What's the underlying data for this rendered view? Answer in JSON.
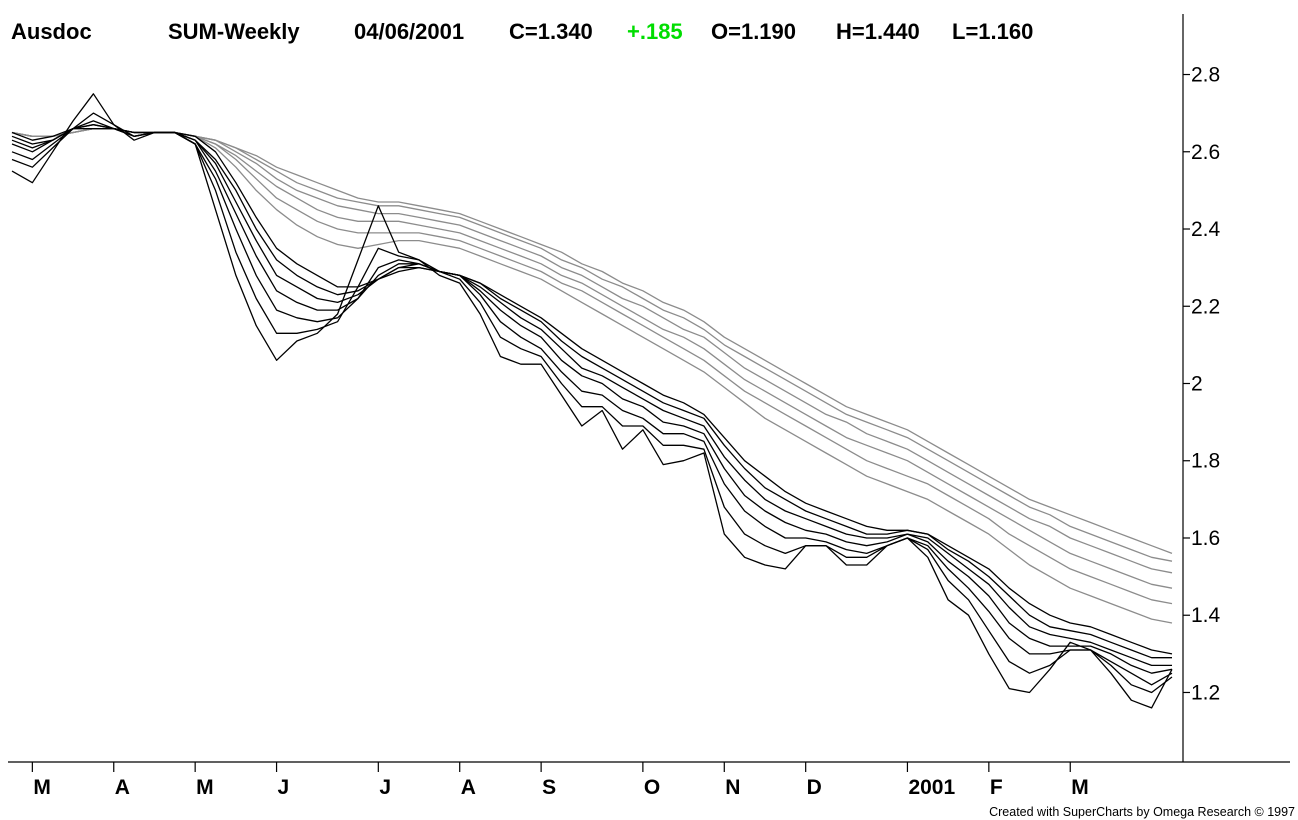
{
  "header": {
    "symbol": "Ausdoc",
    "ticker_period": "SUM-Weekly",
    "date": "04/06/2001",
    "close": "C=1.340",
    "change": "+.185",
    "open": "O=1.190",
    "high": "H=1.440",
    "low": "L=1.160"
  },
  "footer": {
    "credit": "Created with SuperCharts by Omega Research © 1997"
  },
  "colors": {
    "change_color": "#00dd00",
    "short_group": "#000000",
    "long_group": "#8c8c8c"
  },
  "chart_data": {
    "type": "line",
    "description_free": true,
    "x_unit": "weeks",
    "x_labels": [
      "M",
      "A",
      "M",
      "J",
      "J",
      "A",
      "S",
      "O",
      "N",
      "D",
      "2001",
      "F",
      "M"
    ],
    "x_label_weeks": [
      1,
      5,
      9,
      13,
      18,
      22,
      26,
      31,
      35,
      39,
      44,
      48,
      52
    ],
    "ylim": [
      1.02,
      2.98
    ],
    "y_ticks": [
      1.2,
      1.4,
      1.6,
      1.8,
      2,
      2.2,
      2.4,
      2.6,
      2.8
    ],
    "y_tick_labels": [
      "1.2",
      "1.4",
      "1.6",
      "1.8",
      "2",
      "2.2",
      "2.4",
      "2.6",
      "2.8"
    ],
    "x_points": [
      0,
      1,
      2,
      3,
      4,
      5,
      6,
      7,
      8,
      9,
      10,
      11,
      12,
      13,
      14,
      15,
      16,
      17,
      18,
      19,
      20,
      21,
      22,
      23,
      24,
      25,
      26,
      27,
      28,
      29,
      30,
      31,
      32,
      33,
      34,
      35,
      36,
      37,
      38,
      39,
      40,
      41,
      42,
      43,
      44,
      45,
      46,
      47,
      48,
      49,
      50,
      51,
      52,
      53,
      54,
      55,
      56,
      57
    ],
    "series": [
      {
        "group": "short",
        "values": [
          2.55,
          2.52,
          2.6,
          2.68,
          2.75,
          2.67,
          2.63,
          2.65,
          2.65,
          2.62,
          2.45,
          2.28,
          2.15,
          2.06,
          2.11,
          2.13,
          2.18,
          2.32,
          2.46,
          2.34,
          2.32,
          2.28,
          2.26,
          2.18,
          2.07,
          2.05,
          2.05,
          1.97,
          1.89,
          1.93,
          1.83,
          1.88,
          1.79,
          1.8,
          1.82,
          1.61,
          1.55,
          1.53,
          1.52,
          1.58,
          1.58,
          1.53,
          1.53,
          1.58,
          1.6,
          1.55,
          1.44,
          1.4,
          1.3,
          1.21,
          1.2,
          1.26,
          1.33,
          1.31,
          1.25,
          1.18,
          1.16,
          1.26
        ]
      },
      {
        "group": "short",
        "values": [
          2.58,
          2.56,
          2.61,
          2.66,
          2.7,
          2.67,
          2.64,
          2.65,
          2.65,
          2.62,
          2.5,
          2.34,
          2.22,
          2.13,
          2.13,
          2.14,
          2.16,
          2.25,
          2.35,
          2.33,
          2.32,
          2.29,
          2.27,
          2.21,
          2.12,
          2.09,
          2.07,
          2.0,
          1.94,
          1.94,
          1.89,
          1.89,
          1.84,
          1.84,
          1.83,
          1.68,
          1.61,
          1.58,
          1.56,
          1.58,
          1.58,
          1.55,
          1.55,
          1.58,
          1.6,
          1.57,
          1.49,
          1.44,
          1.36,
          1.28,
          1.25,
          1.27,
          1.31,
          1.31,
          1.27,
          1.22,
          1.2,
          1.24
        ]
      },
      {
        "group": "short",
        "values": [
          2.6,
          2.58,
          2.62,
          2.66,
          2.68,
          2.66,
          2.64,
          2.65,
          2.65,
          2.62,
          2.53,
          2.4,
          2.28,
          2.19,
          2.17,
          2.16,
          2.17,
          2.22,
          2.3,
          2.32,
          2.31,
          2.29,
          2.28,
          2.23,
          2.16,
          2.12,
          2.09,
          2.03,
          1.98,
          1.97,
          1.93,
          1.91,
          1.87,
          1.87,
          1.85,
          1.74,
          1.67,
          1.63,
          1.6,
          1.6,
          1.59,
          1.57,
          1.56,
          1.58,
          1.6,
          1.58,
          1.52,
          1.47,
          1.41,
          1.34,
          1.3,
          1.3,
          1.31,
          1.31,
          1.28,
          1.25,
          1.22,
          1.25
        ]
      },
      {
        "group": "short",
        "values": [
          2.62,
          2.6,
          2.63,
          2.66,
          2.67,
          2.66,
          2.64,
          2.65,
          2.65,
          2.63,
          2.55,
          2.44,
          2.33,
          2.24,
          2.21,
          2.19,
          2.19,
          2.22,
          2.28,
          2.31,
          2.31,
          2.29,
          2.28,
          2.24,
          2.19,
          2.15,
          2.12,
          2.06,
          2.02,
          2.0,
          1.96,
          1.94,
          1.9,
          1.89,
          1.87,
          1.78,
          1.71,
          1.67,
          1.64,
          1.62,
          1.61,
          1.59,
          1.58,
          1.59,
          1.61,
          1.59,
          1.54,
          1.5,
          1.45,
          1.38,
          1.34,
          1.32,
          1.32,
          1.32,
          1.3,
          1.27,
          1.25,
          1.26
        ]
      },
      {
        "group": "short",
        "values": [
          2.63,
          2.61,
          2.63,
          2.66,
          2.67,
          2.66,
          2.65,
          2.65,
          2.65,
          2.63,
          2.57,
          2.47,
          2.37,
          2.28,
          2.25,
          2.22,
          2.21,
          2.23,
          2.27,
          2.3,
          2.31,
          2.29,
          2.28,
          2.25,
          2.21,
          2.17,
          2.14,
          2.09,
          2.04,
          2.02,
          1.99,
          1.96,
          1.93,
          1.91,
          1.89,
          1.81,
          1.75,
          1.7,
          1.67,
          1.65,
          1.63,
          1.61,
          1.6,
          1.6,
          1.61,
          1.6,
          1.56,
          1.52,
          1.48,
          1.42,
          1.37,
          1.35,
          1.34,
          1.33,
          1.31,
          1.29,
          1.27,
          1.27
        ]
      },
      {
        "group": "short",
        "values": [
          2.64,
          2.62,
          2.63,
          2.66,
          2.66,
          2.66,
          2.65,
          2.65,
          2.65,
          2.63,
          2.58,
          2.5,
          2.4,
          2.32,
          2.28,
          2.25,
          2.23,
          2.24,
          2.27,
          2.3,
          2.3,
          2.29,
          2.28,
          2.26,
          2.22,
          2.19,
          2.16,
          2.11,
          2.07,
          2.04,
          2.01,
          1.98,
          1.95,
          1.93,
          1.91,
          1.84,
          1.78,
          1.73,
          1.7,
          1.67,
          1.65,
          1.63,
          1.61,
          1.61,
          1.62,
          1.61,
          1.57,
          1.54,
          1.5,
          1.45,
          1.4,
          1.37,
          1.36,
          1.35,
          1.33,
          1.31,
          1.29,
          1.29
        ]
      },
      {
        "group": "short",
        "values": [
          2.65,
          2.63,
          2.64,
          2.66,
          2.66,
          2.66,
          2.65,
          2.65,
          2.65,
          2.64,
          2.6,
          2.52,
          2.43,
          2.35,
          2.31,
          2.28,
          2.25,
          2.25,
          2.27,
          2.29,
          2.3,
          2.29,
          2.28,
          2.26,
          2.23,
          2.2,
          2.17,
          2.13,
          2.09,
          2.06,
          2.03,
          2.0,
          1.97,
          1.95,
          1.92,
          1.86,
          1.8,
          1.76,
          1.72,
          1.69,
          1.67,
          1.65,
          1.63,
          1.62,
          1.62,
          1.61,
          1.58,
          1.55,
          1.52,
          1.47,
          1.43,
          1.4,
          1.38,
          1.37,
          1.35,
          1.33,
          1.31,
          1.3
        ]
      },
      {
        "group": "long",
        "values": [
          2.65,
          2.64,
          2.64,
          2.65,
          2.66,
          2.66,
          2.65,
          2.65,
          2.65,
          2.64,
          2.61,
          2.56,
          2.5,
          2.45,
          2.41,
          2.38,
          2.36,
          2.35,
          2.36,
          2.37,
          2.37,
          2.36,
          2.35,
          2.33,
          2.31,
          2.29,
          2.27,
          2.24,
          2.21,
          2.18,
          2.15,
          2.12,
          2.09,
          2.06,
          2.03,
          1.99,
          1.95,
          1.91,
          1.88,
          1.85,
          1.82,
          1.79,
          1.76,
          1.74,
          1.72,
          1.7,
          1.67,
          1.64,
          1.61,
          1.57,
          1.53,
          1.5,
          1.47,
          1.45,
          1.43,
          1.41,
          1.39,
          1.38
        ]
      },
      {
        "group": "long",
        "values": [
          2.65,
          2.64,
          2.64,
          2.65,
          2.66,
          2.66,
          2.65,
          2.65,
          2.65,
          2.64,
          2.62,
          2.58,
          2.53,
          2.48,
          2.45,
          2.42,
          2.4,
          2.39,
          2.39,
          2.39,
          2.39,
          2.38,
          2.37,
          2.35,
          2.33,
          2.31,
          2.29,
          2.26,
          2.24,
          2.21,
          2.18,
          2.15,
          2.12,
          2.09,
          2.06,
          2.02,
          1.98,
          1.95,
          1.92,
          1.89,
          1.86,
          1.83,
          1.8,
          1.78,
          1.76,
          1.74,
          1.71,
          1.68,
          1.65,
          1.61,
          1.58,
          1.55,
          1.52,
          1.5,
          1.48,
          1.46,
          1.44,
          1.43
        ]
      },
      {
        "group": "long",
        "values": [
          2.65,
          2.64,
          2.64,
          2.65,
          2.66,
          2.66,
          2.65,
          2.65,
          2.65,
          2.64,
          2.62,
          2.59,
          2.55,
          2.51,
          2.48,
          2.45,
          2.43,
          2.42,
          2.42,
          2.42,
          2.41,
          2.4,
          2.39,
          2.37,
          2.35,
          2.33,
          2.31,
          2.28,
          2.26,
          2.23,
          2.2,
          2.17,
          2.14,
          2.12,
          2.09,
          2.05,
          2.01,
          1.98,
          1.95,
          1.92,
          1.89,
          1.86,
          1.84,
          1.82,
          1.8,
          1.77,
          1.74,
          1.71,
          1.68,
          1.65,
          1.62,
          1.59,
          1.56,
          1.54,
          1.52,
          1.5,
          1.48,
          1.47
        ]
      },
      {
        "group": "long",
        "values": [
          2.65,
          2.64,
          2.64,
          2.65,
          2.66,
          2.66,
          2.65,
          2.65,
          2.65,
          2.64,
          2.63,
          2.6,
          2.57,
          2.53,
          2.5,
          2.48,
          2.46,
          2.45,
          2.44,
          2.44,
          2.43,
          2.42,
          2.41,
          2.39,
          2.37,
          2.35,
          2.33,
          2.3,
          2.28,
          2.25,
          2.22,
          2.2,
          2.17,
          2.14,
          2.12,
          2.08,
          2.04,
          2.01,
          1.98,
          1.95,
          1.92,
          1.9,
          1.87,
          1.85,
          1.83,
          1.8,
          1.77,
          1.74,
          1.71,
          1.68,
          1.65,
          1.63,
          1.6,
          1.58,
          1.56,
          1.54,
          1.52,
          1.51
        ]
      },
      {
        "group": "long",
        "values": [
          2.65,
          2.64,
          2.64,
          2.65,
          2.66,
          2.66,
          2.65,
          2.65,
          2.65,
          2.64,
          2.63,
          2.61,
          2.58,
          2.55,
          2.52,
          2.5,
          2.48,
          2.47,
          2.46,
          2.46,
          2.45,
          2.44,
          2.43,
          2.41,
          2.39,
          2.37,
          2.35,
          2.32,
          2.3,
          2.27,
          2.25,
          2.22,
          2.19,
          2.17,
          2.14,
          2.1,
          2.07,
          2.04,
          2.01,
          1.98,
          1.95,
          1.92,
          1.9,
          1.88,
          1.86,
          1.83,
          1.8,
          1.77,
          1.74,
          1.71,
          1.68,
          1.66,
          1.63,
          1.61,
          1.59,
          1.57,
          1.55,
          1.54
        ]
      },
      {
        "group": "long",
        "values": [
          2.65,
          2.64,
          2.64,
          2.65,
          2.66,
          2.66,
          2.65,
          2.65,
          2.65,
          2.64,
          2.63,
          2.61,
          2.59,
          2.56,
          2.54,
          2.52,
          2.5,
          2.48,
          2.47,
          2.47,
          2.46,
          2.45,
          2.44,
          2.42,
          2.4,
          2.38,
          2.36,
          2.34,
          2.31,
          2.29,
          2.26,
          2.24,
          2.21,
          2.19,
          2.16,
          2.12,
          2.09,
          2.06,
          2.03,
          2.0,
          1.97,
          1.94,
          1.92,
          1.9,
          1.88,
          1.85,
          1.82,
          1.79,
          1.76,
          1.73,
          1.7,
          1.68,
          1.66,
          1.64,
          1.62,
          1.6,
          1.58,
          1.56
        ]
      }
    ]
  }
}
